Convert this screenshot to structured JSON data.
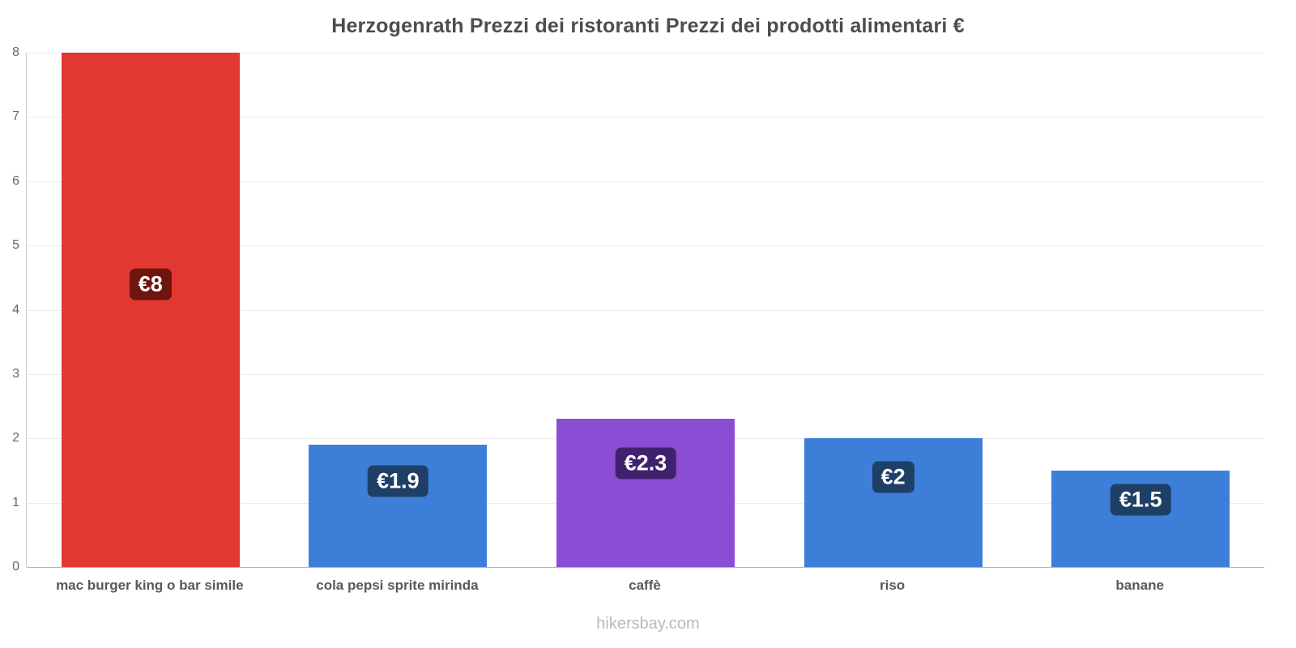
{
  "title": "Herzogenrath Prezzi dei ristoranti Prezzi dei prodotti alimentari €",
  "footer": "hikersbay.com",
  "chart_data": {
    "type": "bar",
    "title": "Herzogenrath Prezzi dei ristoranti Prezzi dei prodotti alimentari €",
    "categories": [
      "mac burger king o bar simile",
      "cola pepsi sprite mirinda",
      "caffè",
      "riso",
      "banane"
    ],
    "values": [
      8,
      1.9,
      2.3,
      2,
      1.5
    ],
    "value_labels": [
      "€8",
      "€1.9",
      "€2.3",
      "€2",
      "€1.5"
    ],
    "bar_colors": [
      "#e23832",
      "#3d7fd8",
      "#8b4dd4",
      "#3d7fd8",
      "#3d7fd8"
    ],
    "badge_colors": [
      "#6e150f",
      "#1e3f66",
      "#40216e",
      "#1e3f66",
      "#1e3f66"
    ],
    "xlabel": "",
    "ylabel": "",
    "ylim": [
      0,
      8
    ],
    "yticks": [
      0,
      1,
      2,
      3,
      4,
      5,
      6,
      7,
      8
    ],
    "grid": true,
    "legend": false,
    "currency": "€"
  }
}
